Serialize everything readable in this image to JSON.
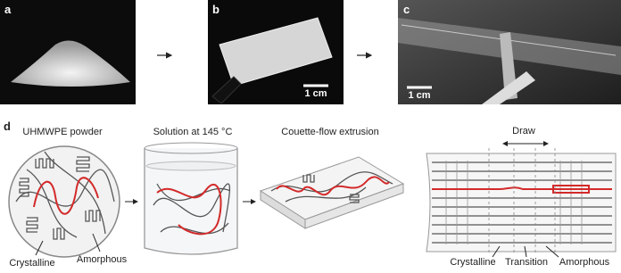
{
  "panels": {
    "a": {
      "label": "a"
    },
    "b": {
      "label": "b",
      "scale_bar": "1 cm"
    },
    "c": {
      "label": "c",
      "scale_bar": "1 cm"
    },
    "d": {
      "label": "d",
      "steps": [
        {
          "title": "UHMWPE powder",
          "labels": [
            "Crystalline",
            "Amorphous"
          ]
        },
        {
          "title": "Solution at 145 °C"
        },
        {
          "title": "Couette-flow extrusion"
        },
        {
          "title": "Draw",
          "labels": [
            "Crystalline",
            "Transition",
            "Amorphous"
          ]
        }
      ]
    }
  }
}
